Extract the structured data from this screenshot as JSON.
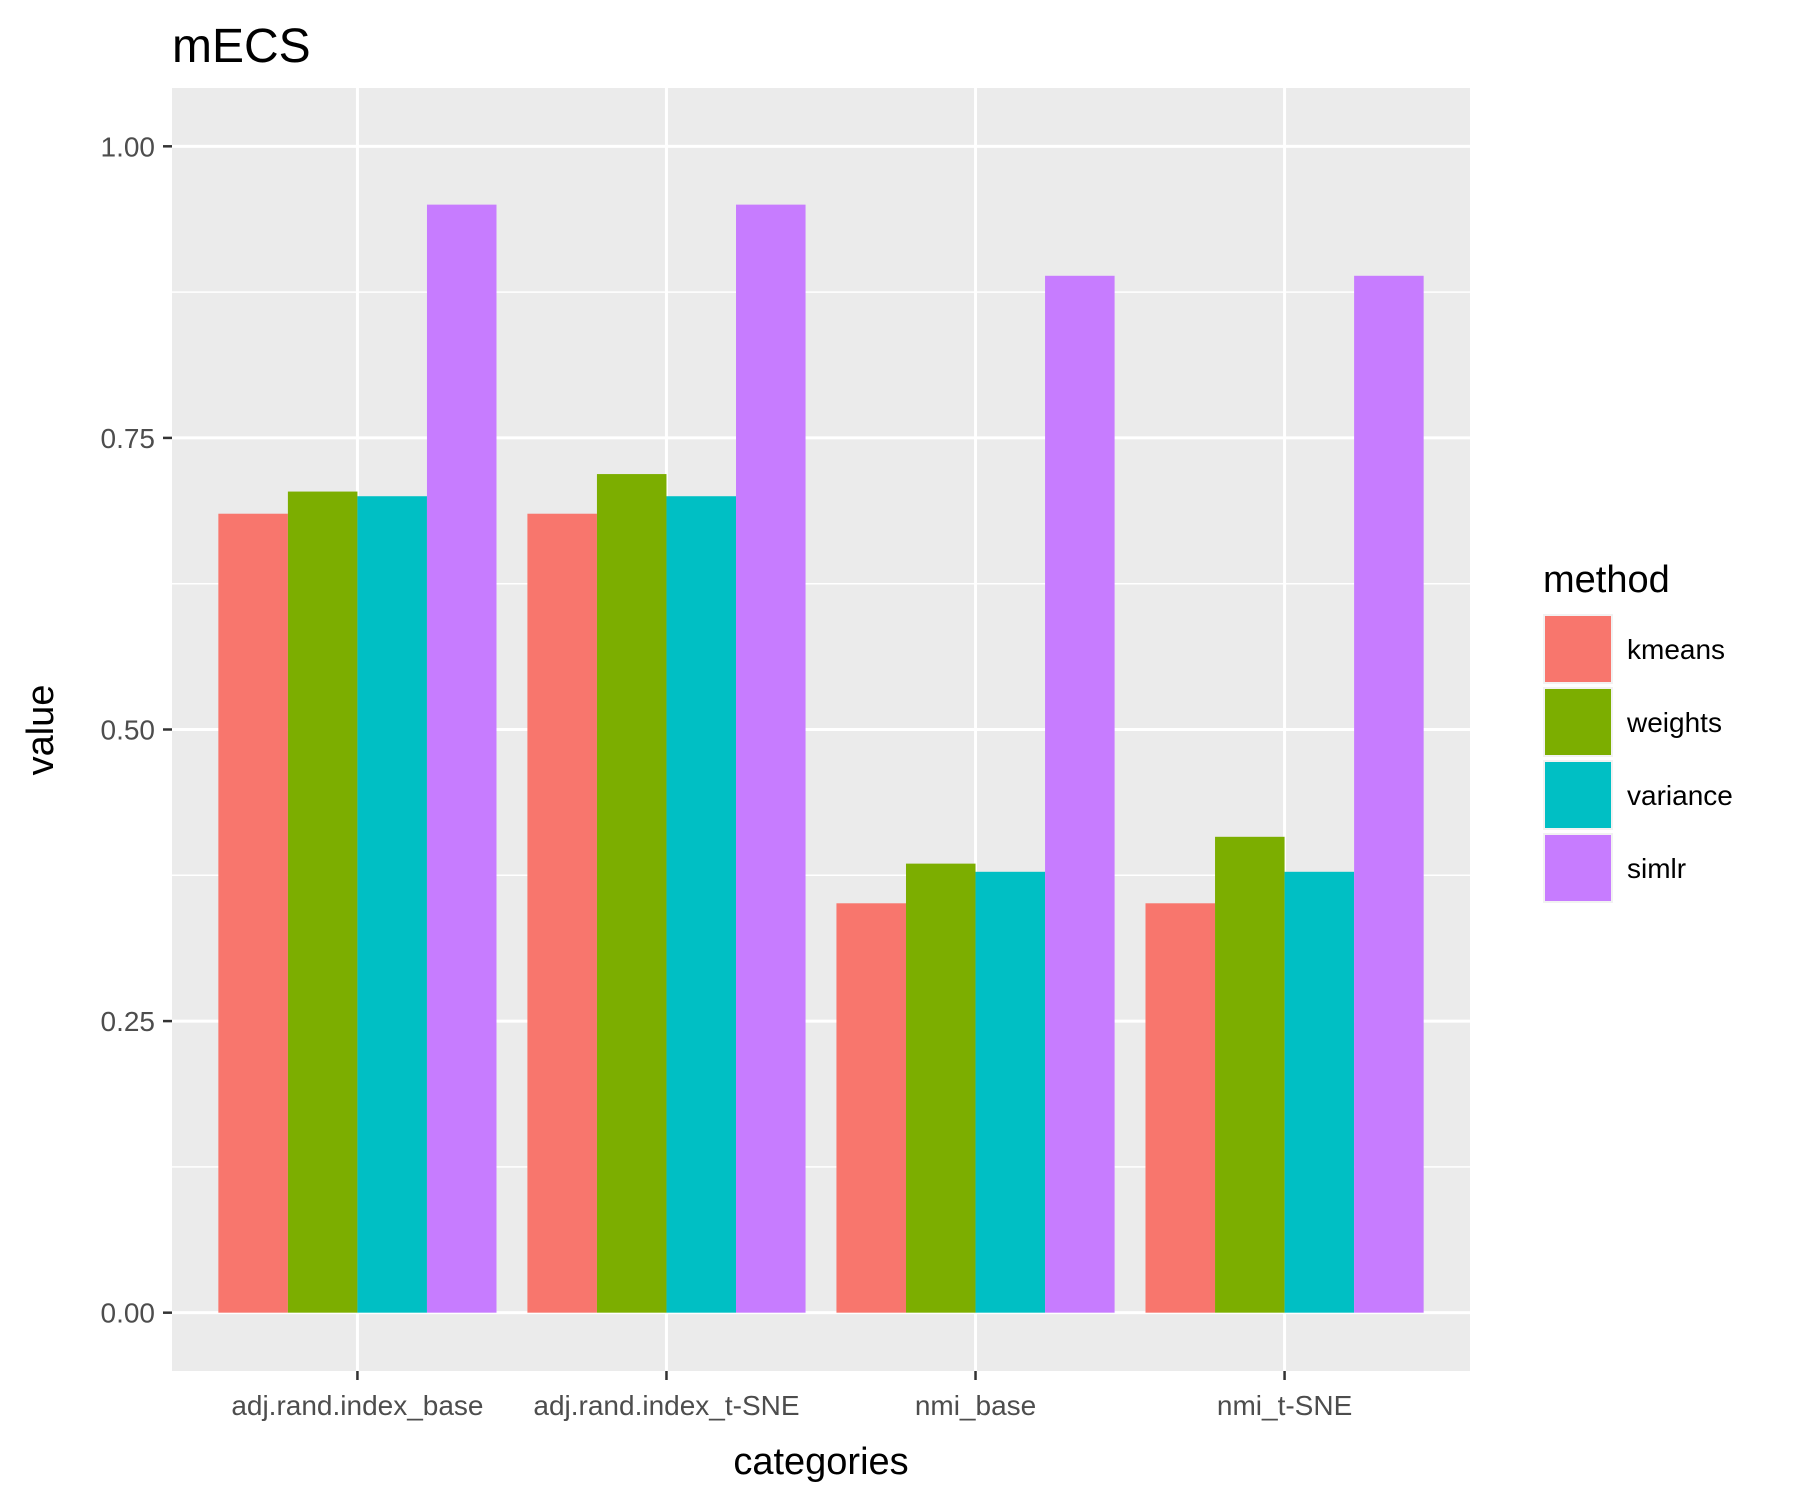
{
  "chart_data": {
    "type": "bar",
    "title": "mECS",
    "xlabel": "categories",
    "ylabel": "value",
    "categories": [
      "adj.rand.index_base",
      "adj.rand.index_t-SNE",
      "nmi_base",
      "nmi_t-SNE"
    ],
    "series": [
      {
        "name": "kmeans",
        "color": "#F8766D",
        "values": [
          0.685,
          0.685,
          0.351,
          0.351
        ]
      },
      {
        "name": "weights",
        "color": "#7CAE00",
        "values": [
          0.704,
          0.719,
          0.385,
          0.408
        ]
      },
      {
        "name": "variance",
        "color": "#00BFC4",
        "values": [
          0.7,
          0.7,
          0.378,
          0.378
        ]
      },
      {
        "name": "simlr",
        "color": "#C77CFF",
        "values": [
          0.95,
          0.95,
          0.889,
          0.889
        ]
      }
    ],
    "ylim": [
      -0.05,
      1.05
    ],
    "yticks": [
      0.0,
      0.25,
      0.5,
      0.75,
      1.0
    ],
    "ytick_labels": [
      "0.00",
      "0.25",
      "0.50",
      "0.75",
      "1.00"
    ],
    "grid": true,
    "legend": {
      "title": "method",
      "position": "right"
    },
    "panel_background": "#EBEBEB"
  }
}
